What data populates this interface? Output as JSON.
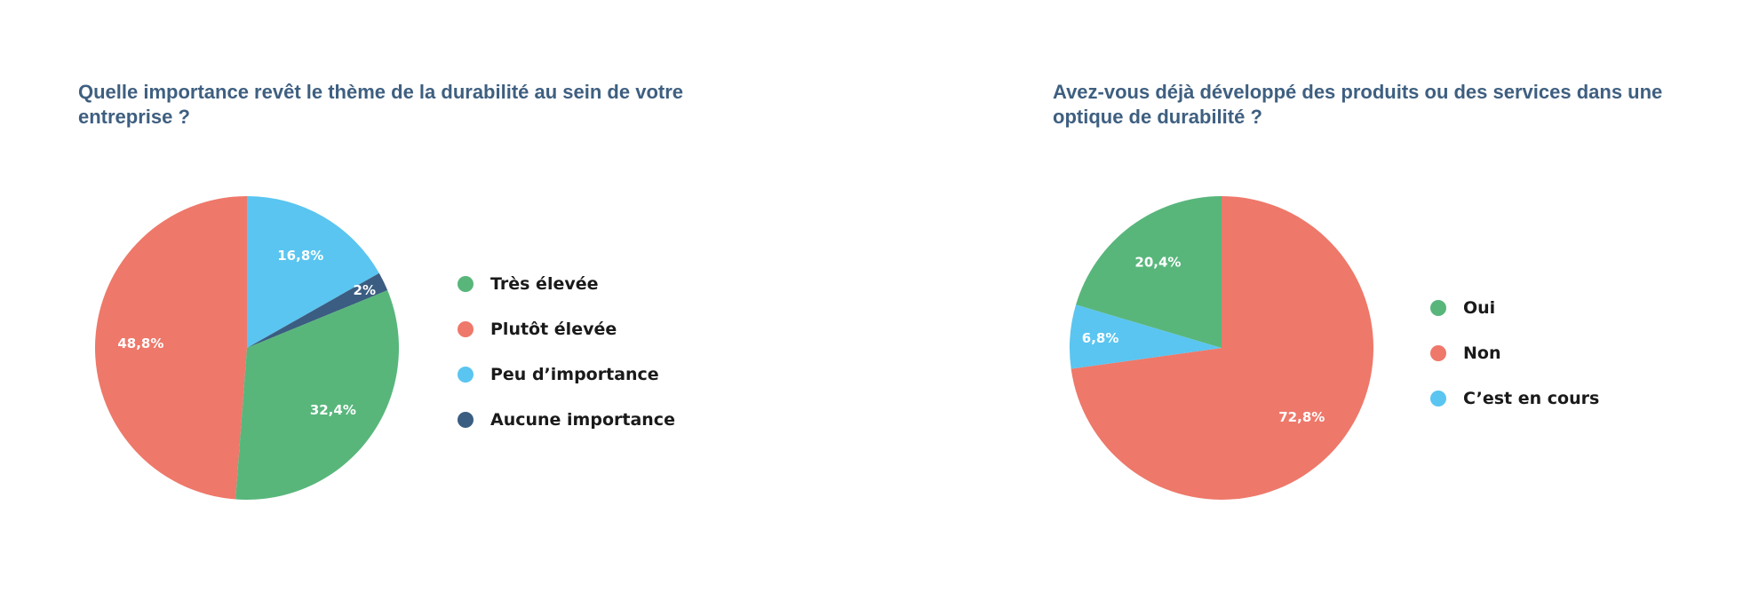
{
  "chart_data": [
    {
      "type": "pie",
      "title": "Quelle importance revêt le thème de la durabilité au sein de votre entreprise ?",
      "slices": [
        {
          "label": "Très élevée",
          "value": 32.4,
          "display": "32,4%",
          "color": "#58b67b"
        },
        {
          "label": "Plutôt élevée",
          "value": 48.8,
          "display": "48,8%",
          "color": "#ee786a"
        },
        {
          "label": "Peu d’importance",
          "value": 16.8,
          "display": "16,8%",
          "color": "#5ac5f0"
        },
        {
          "label": "Aucune importance",
          "value": 2,
          "display": "2%",
          "color": "#3b5d81"
        }
      ],
      "legend_position": "right"
    },
    {
      "type": "pie",
      "title": "Avez-vous déjà développé des produits ou des services dans une optique de durabilité ?",
      "slices": [
        {
          "label": "Oui",
          "value": 20.4,
          "display": "20,4%",
          "color": "#58b67b"
        },
        {
          "label": "Non",
          "value": 72.8,
          "display": "72,8%",
          "color": "#ee786a"
        },
        {
          "label": "C’est en cours",
          "value": 6.8,
          "display": "6,8%",
          "color": "#5ac5f0"
        }
      ],
      "legend_position": "right"
    }
  ]
}
